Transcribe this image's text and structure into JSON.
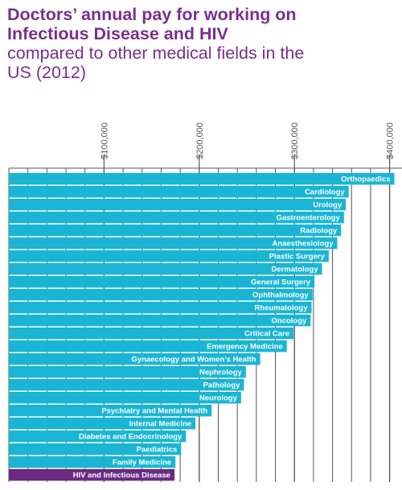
{
  "title": "Doctors’ annual pay for working on Infectious Disease and HIV",
  "subtitle": "compared to other medical fields in the US (2012)",
  "colors": {
    "title": "#7b2f8e",
    "bar": "#1ab5d4",
    "highlight": "#6a2a84",
    "gridline": "#555555"
  },
  "chart_data": {
    "type": "bar",
    "orientation": "horizontal",
    "title": "Doctors’ annual pay for working on Infectious Disease and HIV",
    "subtitle": "compared to other medical fields in the US (2012)",
    "xlim": [
      0,
      413000
    ],
    "x_ticks": [
      100000,
      200000,
      300000,
      400000
    ],
    "x_tick_labels": [
      "$100,000",
      "$200,000",
      "$300,000",
      "$400,000"
    ],
    "x_minor_step": 20000,
    "grid": true,
    "highlight_category": "HIV and Infectious Disease",
    "categories": [
      "Orthopaedics",
      "Cardiology",
      "Urology",
      "Gastroenterology",
      "Radiology",
      "Anaesthesiology",
      "Plastic Surgery",
      "Dermatology",
      "General Surgery",
      "Ophthalmology",
      "Rheumatology",
      "Oncology",
      "Critical Care",
      "Emergency Medicine",
      "Gynaecology and Women's Health",
      "Nephrology",
      "Pathology",
      "Neurology",
      "Psychiatry and Mental Health",
      "Internal Medicine",
      "Diabetes and Endocrinology",
      "Paediatrics",
      "Family Medicine",
      "HIV and Infectious Disease"
    ],
    "values": [
      405000,
      357000,
      354000,
      352000,
      349000,
      345000,
      336000,
      329000,
      321000,
      319000,
      318000,
      317000,
      299000,
      292000,
      264000,
      249000,
      247000,
      244000,
      213000,
      196000,
      186000,
      181000,
      175000,
      174000
    ]
  }
}
